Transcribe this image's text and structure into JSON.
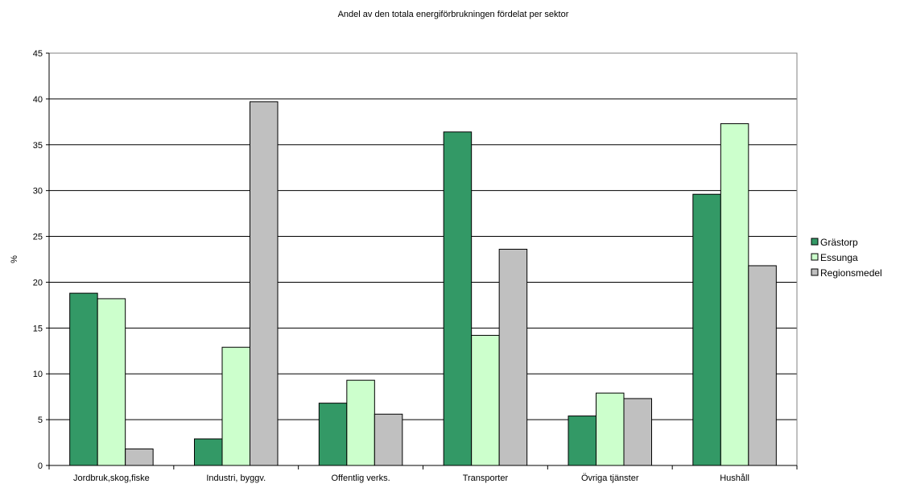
{
  "chart_data": {
    "type": "bar",
    "title": "Andel av den totala energiförbrukningen fördelat per sektor",
    "ylabel": "%",
    "xlabel": "",
    "ylim": [
      0,
      45
    ],
    "yticks": [
      0,
      5,
      10,
      15,
      20,
      25,
      30,
      35,
      40,
      45
    ],
    "grid": true,
    "legend_position": "right",
    "categories": [
      "Jordbruk,skog,fiske",
      "Industri, byggv.",
      "Offentlig verks.",
      "Transporter",
      "Övriga tjänster",
      "Hushåll"
    ],
    "series": [
      {
        "name": "Grästorp",
        "color": "#339966",
        "values": [
          18.8,
          2.9,
          6.8,
          36.4,
          5.4,
          29.6
        ]
      },
      {
        "name": "Essunga",
        "color": "#ccffcc",
        "values": [
          18.2,
          12.9,
          9.3,
          14.2,
          7.9,
          37.3
        ]
      },
      {
        "name": "Regionsmedel",
        "color": "#c0c0c0",
        "values": [
          1.8,
          39.7,
          5.6,
          23.6,
          7.3,
          21.8
        ]
      }
    ]
  }
}
